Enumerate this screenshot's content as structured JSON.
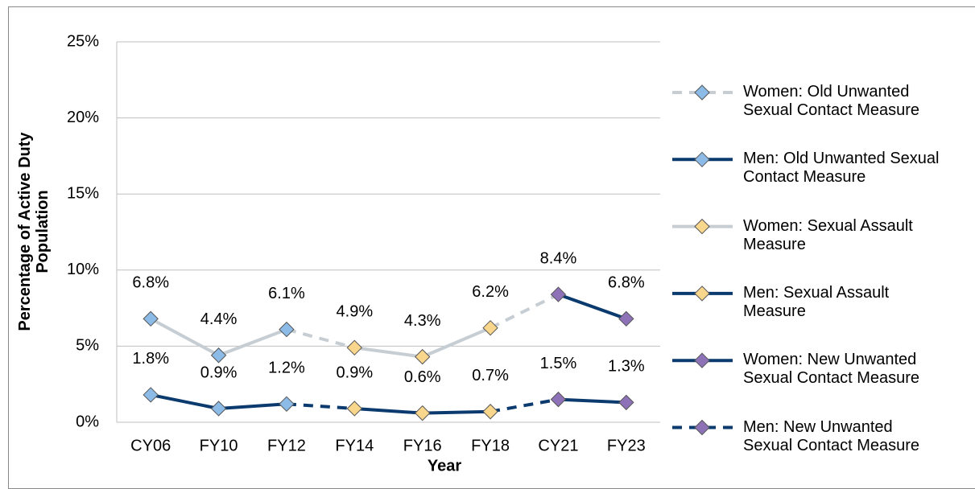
{
  "chart_data": {
    "type": "line",
    "y_label": "Percentage of Active Duty Population",
    "x_label": "Year",
    "categories": [
      "CY06",
      "FY10",
      "FY12",
      "FY14",
      "FY16",
      "FY18",
      "CY21",
      "FY23"
    ],
    "ylim": [
      0,
      25
    ],
    "yticks": [
      {
        "value": 0,
        "label": "0%"
      },
      {
        "value": 5,
        "label": "5%"
      },
      {
        "value": 10,
        "label": "10%"
      },
      {
        "value": 15,
        "label": "15%"
      },
      {
        "value": 20,
        "label": "20%"
      },
      {
        "value": 25,
        "label": "25%"
      }
    ],
    "grid": true,
    "legend": "right",
    "series": [
      {
        "name": "Women: Old Unwanted Sexual Contact Measure",
        "color": "#c6ced4",
        "marker_color": "#8cbbe8",
        "dashed": true,
        "values": [
          6.8,
          4.4,
          6.1,
          null,
          null,
          null,
          null,
          null
        ],
        "value_labels": [
          "6.8%",
          "4.4%",
          "6.1%",
          null,
          null,
          null,
          null,
          null
        ]
      },
      {
        "name": "Men: Old Unwanted Sexual Contact Measure",
        "color": "#0b3a6e",
        "marker_color": "#8cbbe8",
        "dashed": false,
        "values": [
          1.8,
          0.9,
          1.2,
          null,
          null,
          null,
          null,
          null
        ],
        "value_labels": [
          "1.8%",
          "0.9%",
          "1.2%",
          null,
          null,
          null,
          null,
          null
        ]
      },
      {
        "name": "Women: Sexual Assault Measure",
        "color": "#c6ced4",
        "marker_color": "#f8d68c",
        "dashed": false,
        "values": [
          null,
          null,
          null,
          4.9,
          4.3,
          6.2,
          null,
          null
        ],
        "value_labels": [
          null,
          null,
          null,
          "4.9%",
          "4.3%",
          "6.2%",
          null,
          null
        ]
      },
      {
        "name": "Men: Sexual Assault Measure",
        "color": "#0b3a6e",
        "marker_color": "#f8d68c",
        "dashed": false,
        "values": [
          null,
          null,
          null,
          0.9,
          0.6,
          0.7,
          null,
          null
        ],
        "value_labels": [
          null,
          null,
          null,
          "0.9%",
          "0.6%",
          "0.7%",
          null,
          null
        ]
      },
      {
        "name": "Women: New Unwanted Sexual Contact Measure",
        "color": "#0b3a6e",
        "marker_color": "#8e72b8",
        "dashed": false,
        "values": [
          null,
          null,
          null,
          null,
          null,
          null,
          8.4,
          6.8
        ],
        "value_labels": [
          null,
          null,
          null,
          null,
          null,
          null,
          "8.4%",
          "6.8%"
        ]
      },
      {
        "name": "Men: New Unwanted Sexual Contact Measure",
        "color": "#0b3a6e",
        "marker_color": "#8e72b8",
        "dashed": true,
        "values": [
          null,
          null,
          null,
          null,
          null,
          null,
          1.5,
          1.3
        ],
        "value_labels": [
          null,
          null,
          null,
          null,
          null,
          null,
          "1.5%",
          "1.3%"
        ]
      }
    ]
  }
}
